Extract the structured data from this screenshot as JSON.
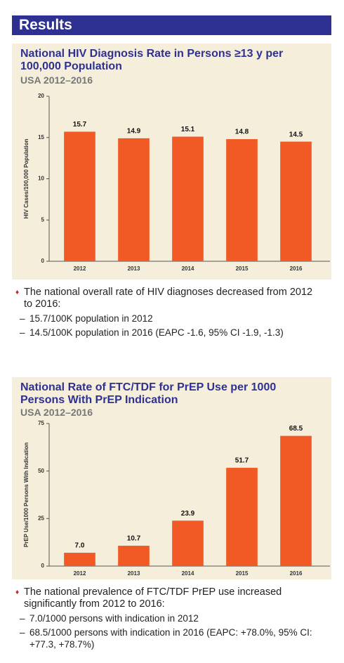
{
  "header": {
    "title": "Results"
  },
  "chart_data": [
    {
      "type": "bar",
      "title": "National HIV Diagnosis Rate in Persons ≥13 y per 100,000 Population",
      "subtitle": "USA 2012–2016",
      "y_label": "HIV Cases/100,000 Population",
      "categories": [
        "2012",
        "2013",
        "2014",
        "2015",
        "2016"
      ],
      "values": [
        15.7,
        14.9,
        15.1,
        14.8,
        14.5
      ],
      "color": "#f15a24",
      "ylim": [
        0,
        20
      ],
      "yticks": [
        0,
        5,
        10,
        15,
        20
      ]
    },
    {
      "type": "bar",
      "title": "National Rate of FTC/TDF for PrEP Use per 1000 Persons With PrEP Indication",
      "subtitle": "USA 2012–2016",
      "y_label": "PrEP Use/1000 Persons With Indication",
      "categories": [
        "2012",
        "2013",
        "2014",
        "2015",
        "2016"
      ],
      "values": [
        7.0,
        10.7,
        23.9,
        51.7,
        68.5
      ],
      "value_labels": [
        "7.0",
        "10.7",
        "23.9",
        "51.7",
        "68.5"
      ],
      "color": "#f15a24",
      "ylim": [
        0,
        75
      ],
      "yticks": [
        0,
        25,
        50,
        75
      ]
    }
  ],
  "bullets": [
    {
      "text": "The national overall rate of HIV diagnoses decreased from 2012 to 2016:",
      "sub": [
        "15.7/100K population in 2012",
        "14.5/100K population in 2016 (EAPC -1.6, 95% CI -1.9, -1.3)"
      ]
    },
    {
      "text": "The national prevalence of FTC/TDF PrEP use increased significantly from 2012 to 2016:",
      "sub": [
        "7.0/1000 persons with indication in 2012",
        "68.5/1000 persons with indication in 2016 (EAPC: +78.0%, 95% CI: +77.3, +78.7%)"
      ]
    }
  ]
}
